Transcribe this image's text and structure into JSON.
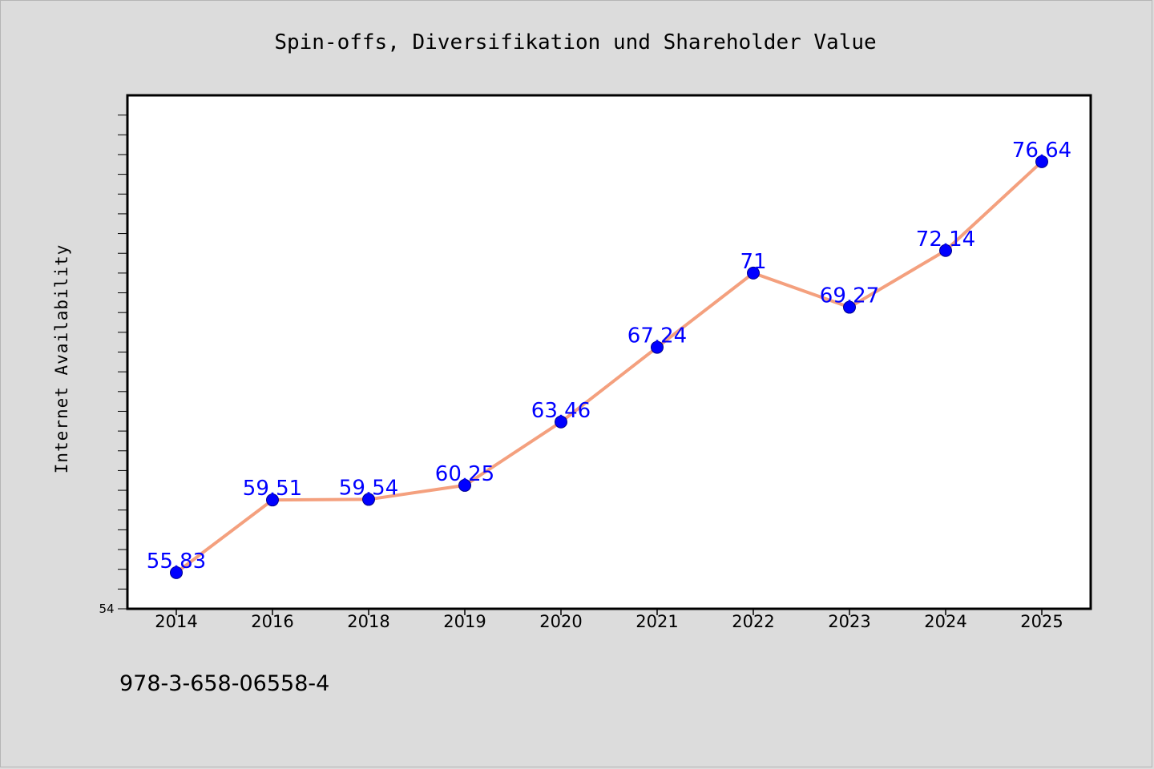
{
  "isbn": "978-3-658-06558-4",
  "colors": {
    "background": "#dcdcdc",
    "plot_background": "#ffffff",
    "line": "#f4a07e",
    "marker": "#0000ff",
    "data_label": "#0000ff"
  },
  "chart_data": {
    "type": "line",
    "title": "Spin-offs, Diversifikation und Shareholder Value",
    "xlabel": "",
    "ylabel": "Internet Availability",
    "categories": [
      "2014",
      "2016",
      "2018",
      "2019",
      "2020",
      "2021",
      "2022",
      "2023",
      "2024",
      "2025"
    ],
    "series": [
      {
        "values": [
          55.83,
          59.51,
          59.54,
          60.25,
          63.46,
          67.24,
          71,
          69.27,
          72.14,
          76.64
        ],
        "data_labels": [
          "55.83",
          "59.51",
          "59.54",
          "60.25",
          "63.46",
          "67.24",
          "71",
          "69.27",
          "72.14",
          "76.64"
        ]
      }
    ],
    "ylim": [
      54,
      80
    ],
    "y_tick_labels": [
      "54"
    ],
    "grid": false,
    "legend": "none"
  }
}
